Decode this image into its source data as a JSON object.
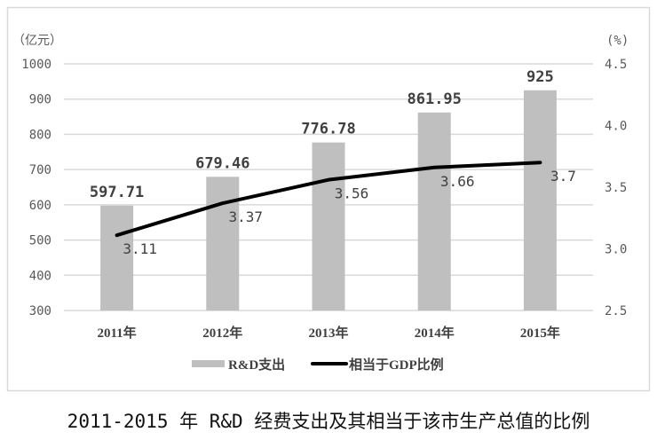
{
  "chart_data": {
    "type": "bar+line",
    "title": "2011-2015 年 R&D 经费支出及其相当于该市生产总值的比例",
    "categories": [
      "2011年",
      "2012年",
      "2013年",
      "2014年",
      "2015年"
    ],
    "series": [
      {
        "name": "R&D支出",
        "type": "bar",
        "axis": "left",
        "values": [
          597.71,
          679.46,
          776.78,
          861.95,
          925
        ],
        "labels": [
          "597.71",
          "679.46",
          "776.78",
          "861.95",
          "925"
        ],
        "color": "#bfbfbf"
      },
      {
        "name": "相当于GDP比例",
        "type": "line",
        "axis": "right",
        "values": [
          3.11,
          3.37,
          3.56,
          3.66,
          3.7
        ],
        "labels": [
          "3.11",
          "3.37",
          "3.56",
          "3.66",
          "3.7"
        ],
        "color": "#000000"
      }
    ],
    "y_left": {
      "label": "（亿元）",
      "range": [
        300,
        1000
      ],
      "ticks": [
        "300",
        "400",
        "500",
        "600",
        "700",
        "800",
        "900",
        "1000"
      ]
    },
    "y_right": {
      "label": "(%)",
      "range": [
        2.5,
        4.5
      ],
      "ticks": [
        "2.5",
        "3.0",
        "3.5",
        "4.0",
        "4.5"
      ]
    },
    "grid": true,
    "legend": "bottom"
  }
}
